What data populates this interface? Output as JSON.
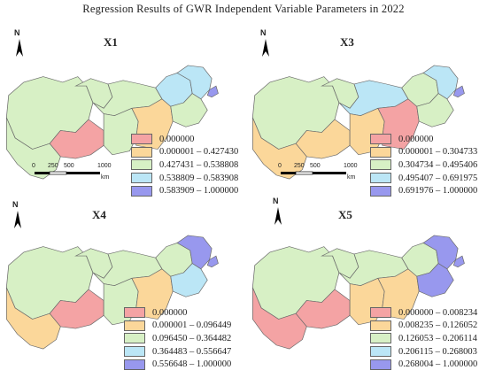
{
  "title": "Regression Results of GWR Independent Variable Parameters in 2022",
  "colors": {
    "class1": "#f4a3a4",
    "class2": "#fbd79a",
    "class3": "#d7f0c5",
    "class4": "#bbe6f6",
    "class5": "#9898ee",
    "border": "#6a6a6a"
  },
  "scale": {
    "labels": [
      "0",
      "250",
      "500",
      "1000"
    ],
    "unit": "km"
  },
  "north_label": "N",
  "panels": [
    {
      "name": "X1",
      "classes": [
        "0.000000",
        "0.000001 – 0.427430",
        "0.427431 – 0.538808",
        "0.538809 – 0.583908",
        "0.583909 – 1.000000"
      ]
    },
    {
      "name": "X3",
      "classes": [
        "0.000000",
        "0.000001 – 0.304733",
        "0.304734 – 0.495406",
        "0.495407 – 0.691975",
        "0.691976 – 1.000000"
      ]
    },
    {
      "name": "X4",
      "classes": [
        "0.000000",
        "0.000001 – 0.096449",
        "0.096450 – 0.364482",
        "0.364483 – 0.556647",
        "0.556648 – 1.000000"
      ]
    },
    {
      "name": "X5",
      "classes": [
        "0.000000 – 0.008234",
        "0.008235 – 0.126052",
        "0.126053 – 0.206114",
        "0.206115 – 0.268003",
        "0.268004 – 1.000000"
      ]
    }
  ]
}
